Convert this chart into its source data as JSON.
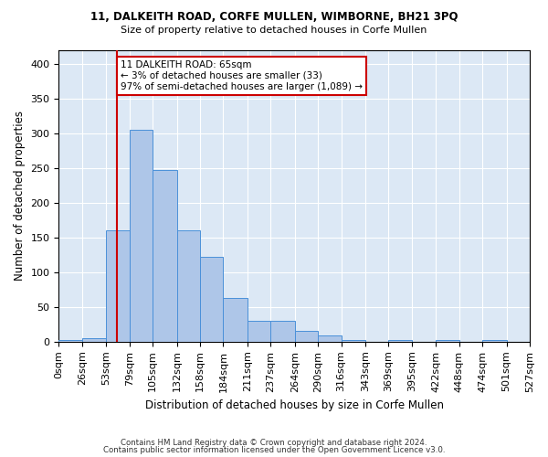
{
  "title1": "11, DALKEITH ROAD, CORFE MULLEN, WIMBORNE, BH21 3PQ",
  "title2": "Size of property relative to detached houses in Corfe Mullen",
  "xlabel": "Distribution of detached houses by size in Corfe Mullen",
  "ylabel": "Number of detached properties",
  "bin_edges": [
    0,
    26,
    53,
    79,
    105,
    132,
    158,
    184,
    211,
    237,
    264,
    290,
    316,
    343,
    369,
    395,
    422,
    448,
    474,
    501,
    527
  ],
  "bin_labels": [
    "0sqm",
    "26sqm",
    "53sqm",
    "79sqm",
    "105sqm",
    "132sqm",
    "158sqm",
    "184sqm",
    "211sqm",
    "237sqm",
    "264sqm",
    "290sqm",
    "316sqm",
    "343sqm",
    "369sqm",
    "395sqm",
    "422sqm",
    "448sqm",
    "474sqm",
    "501sqm",
    "527sqm"
  ],
  "bar_heights": [
    2,
    5,
    160,
    305,
    247,
    160,
    122,
    63,
    30,
    30,
    15,
    9,
    3,
    0,
    3,
    0,
    3,
    0,
    3,
    0
  ],
  "bar_color": "#aec6e8",
  "bar_edge_color": "#4a90d9",
  "property_value": 65,
  "vline_color": "#cc0000",
  "annotation_text": "11 DALKEITH ROAD: 65sqm\n← 3% of detached houses are smaller (33)\n97% of semi-detached houses are larger (1,089) →",
  "annotation_box_color": "white",
  "annotation_box_edge": "#cc0000",
  "ylim": [
    0,
    420
  ],
  "yticks": [
    0,
    50,
    100,
    150,
    200,
    250,
    300,
    350,
    400
  ],
  "background_color": "#dce8f5",
  "footer1": "Contains HM Land Registry data © Crown copyright and database right 2024.",
  "footer2": "Contains public sector information licensed under the Open Government Licence v3.0."
}
